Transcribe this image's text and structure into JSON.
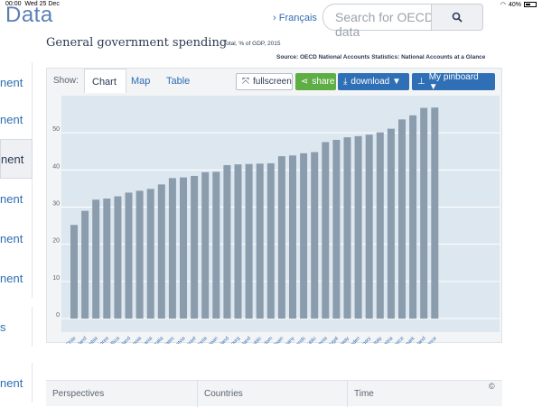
{
  "status": {
    "time": "00:00",
    "date": "Wed 25 Dec",
    "battery": "40%"
  },
  "header": {
    "brand": "Data",
    "language": "› Français",
    "search_placeholder": "Search for OECD data"
  },
  "sidebar": {
    "items": [
      {
        "label": "nent"
      },
      {
        "label": "nent"
      },
      {
        "label": "nent"
      },
      {
        "label": "nent"
      },
      {
        "label": "nent"
      },
      {
        "label": "nent"
      },
      {
        "label": "s"
      },
      {
        "label": "nent"
      }
    ]
  },
  "page": {
    "title": "General government spending",
    "subtitle": "Total, % of GDP, 2015",
    "source": "Source: OECD National Accounts Statistics: National Accounts at a Glance"
  },
  "toolbar": {
    "show_label": "Show:",
    "tabs": [
      {
        "label": "Chart"
      },
      {
        "label": "Map"
      },
      {
        "label": "Table"
      }
    ],
    "fullscreen_label": "fullscreen",
    "share_label": "share",
    "download_label": "download ▼",
    "pinboard_label": "My pinboard ▼"
  },
  "footer": {
    "perspectives": "Perspectives",
    "countries": "Countries",
    "time": "Time",
    "copyright": "©"
  },
  "colors": {
    "bar": "#8b9cad",
    "plot_bg": "#dde7f0",
    "accent": "#2f6fb5",
    "share": "#5eae45"
  },
  "chart_data": {
    "type": "bar",
    "title": "General government spending",
    "subtitle": "Total, % of GDP, 2015",
    "ylim": [
      0,
      60
    ],
    "yticks": [
      0,
      10,
      20,
      30,
      40,
      50
    ],
    "grid": true,
    "categories": [
      "Chile",
      "Ireland",
      "Colombia",
      "Korea",
      "Costa Rica",
      "Switzerland",
      "Russia",
      "Lithuania",
      "Australia",
      "United States",
      "Latvia",
      "Israel",
      "Estonia",
      "Japan",
      "Iceland",
      "Luxembourg",
      "Poland",
      "Czech Republic",
      "United Kingdom",
      "Spain",
      "Germany",
      "Netherlands",
      "Slovak Republic",
      "Slovenia",
      "Portugal",
      "Norway",
      "Sweden",
      "Hungary",
      "Italy",
      "Austria",
      "Greece",
      "Denmark",
      "Finland",
      "France"
    ],
    "series": [
      {
        "values": [
          25.2,
          29.0,
          32.0,
          32.3,
          32.9,
          33.9,
          34.4,
          34.9,
          36.1,
          37.8,
          38.0,
          38.4,
          39.4,
          39.5,
          41.3,
          41.5,
          41.6,
          41.7,
          41.8,
          43.7,
          43.9,
          44.5,
          44.8,
          47.5,
          48.1,
          48.8,
          49.1,
          49.5,
          50.1,
          51.1,
          53.6,
          54.7,
          56.7,
          56.8
        ]
      }
    ]
  }
}
